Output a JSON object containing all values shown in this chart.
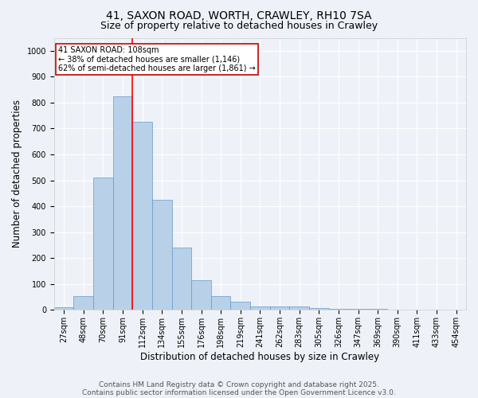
{
  "title": "41, SAXON ROAD, WORTH, CRAWLEY, RH10 7SA",
  "subtitle": "Size of property relative to detached houses in Crawley",
  "xlabel": "Distribution of detached houses by size in Crawley",
  "ylabel": "Number of detached properties",
  "categories": [
    "27sqm",
    "48sqm",
    "70sqm",
    "91sqm",
    "112sqm",
    "134sqm",
    "155sqm",
    "176sqm",
    "198sqm",
    "219sqm",
    "241sqm",
    "262sqm",
    "283sqm",
    "305sqm",
    "326sqm",
    "347sqm",
    "369sqm",
    "390sqm",
    "411sqm",
    "433sqm",
    "454sqm"
  ],
  "values": [
    10,
    55,
    510,
    825,
    725,
    425,
    240,
    115,
    55,
    33,
    13,
    13,
    13,
    8,
    5,
    5,
    5,
    0,
    0,
    0,
    0
  ],
  "bar_color": "#b8d0e8",
  "bar_edge_color": "#6699cc",
  "bar_edge_width": 0.5,
  "red_line_x": 3.5,
  "annotation_text": "41 SAXON ROAD: 108sqm\n← 38% of detached houses are smaller (1,146)\n62% of semi-detached houses are larger (1,861) →",
  "annotation_box_color": "#ffffff",
  "annotation_box_edge_color": "#cc0000",
  "ylim": [
    0,
    1050
  ],
  "yticks": [
    0,
    100,
    200,
    300,
    400,
    500,
    600,
    700,
    800,
    900,
    1000
  ],
  "footer_line1": "Contains HM Land Registry data © Crown copyright and database right 2025.",
  "footer_line2": "Contains public sector information licensed under the Open Government Licence v3.0.",
  "bg_color": "#eef2f8",
  "grid_color": "#ffffff",
  "title_fontsize": 10,
  "subtitle_fontsize": 9,
  "tick_fontsize": 7,
  "label_fontsize": 8.5,
  "annotation_fontsize": 7,
  "footer_fontsize": 6.5
}
